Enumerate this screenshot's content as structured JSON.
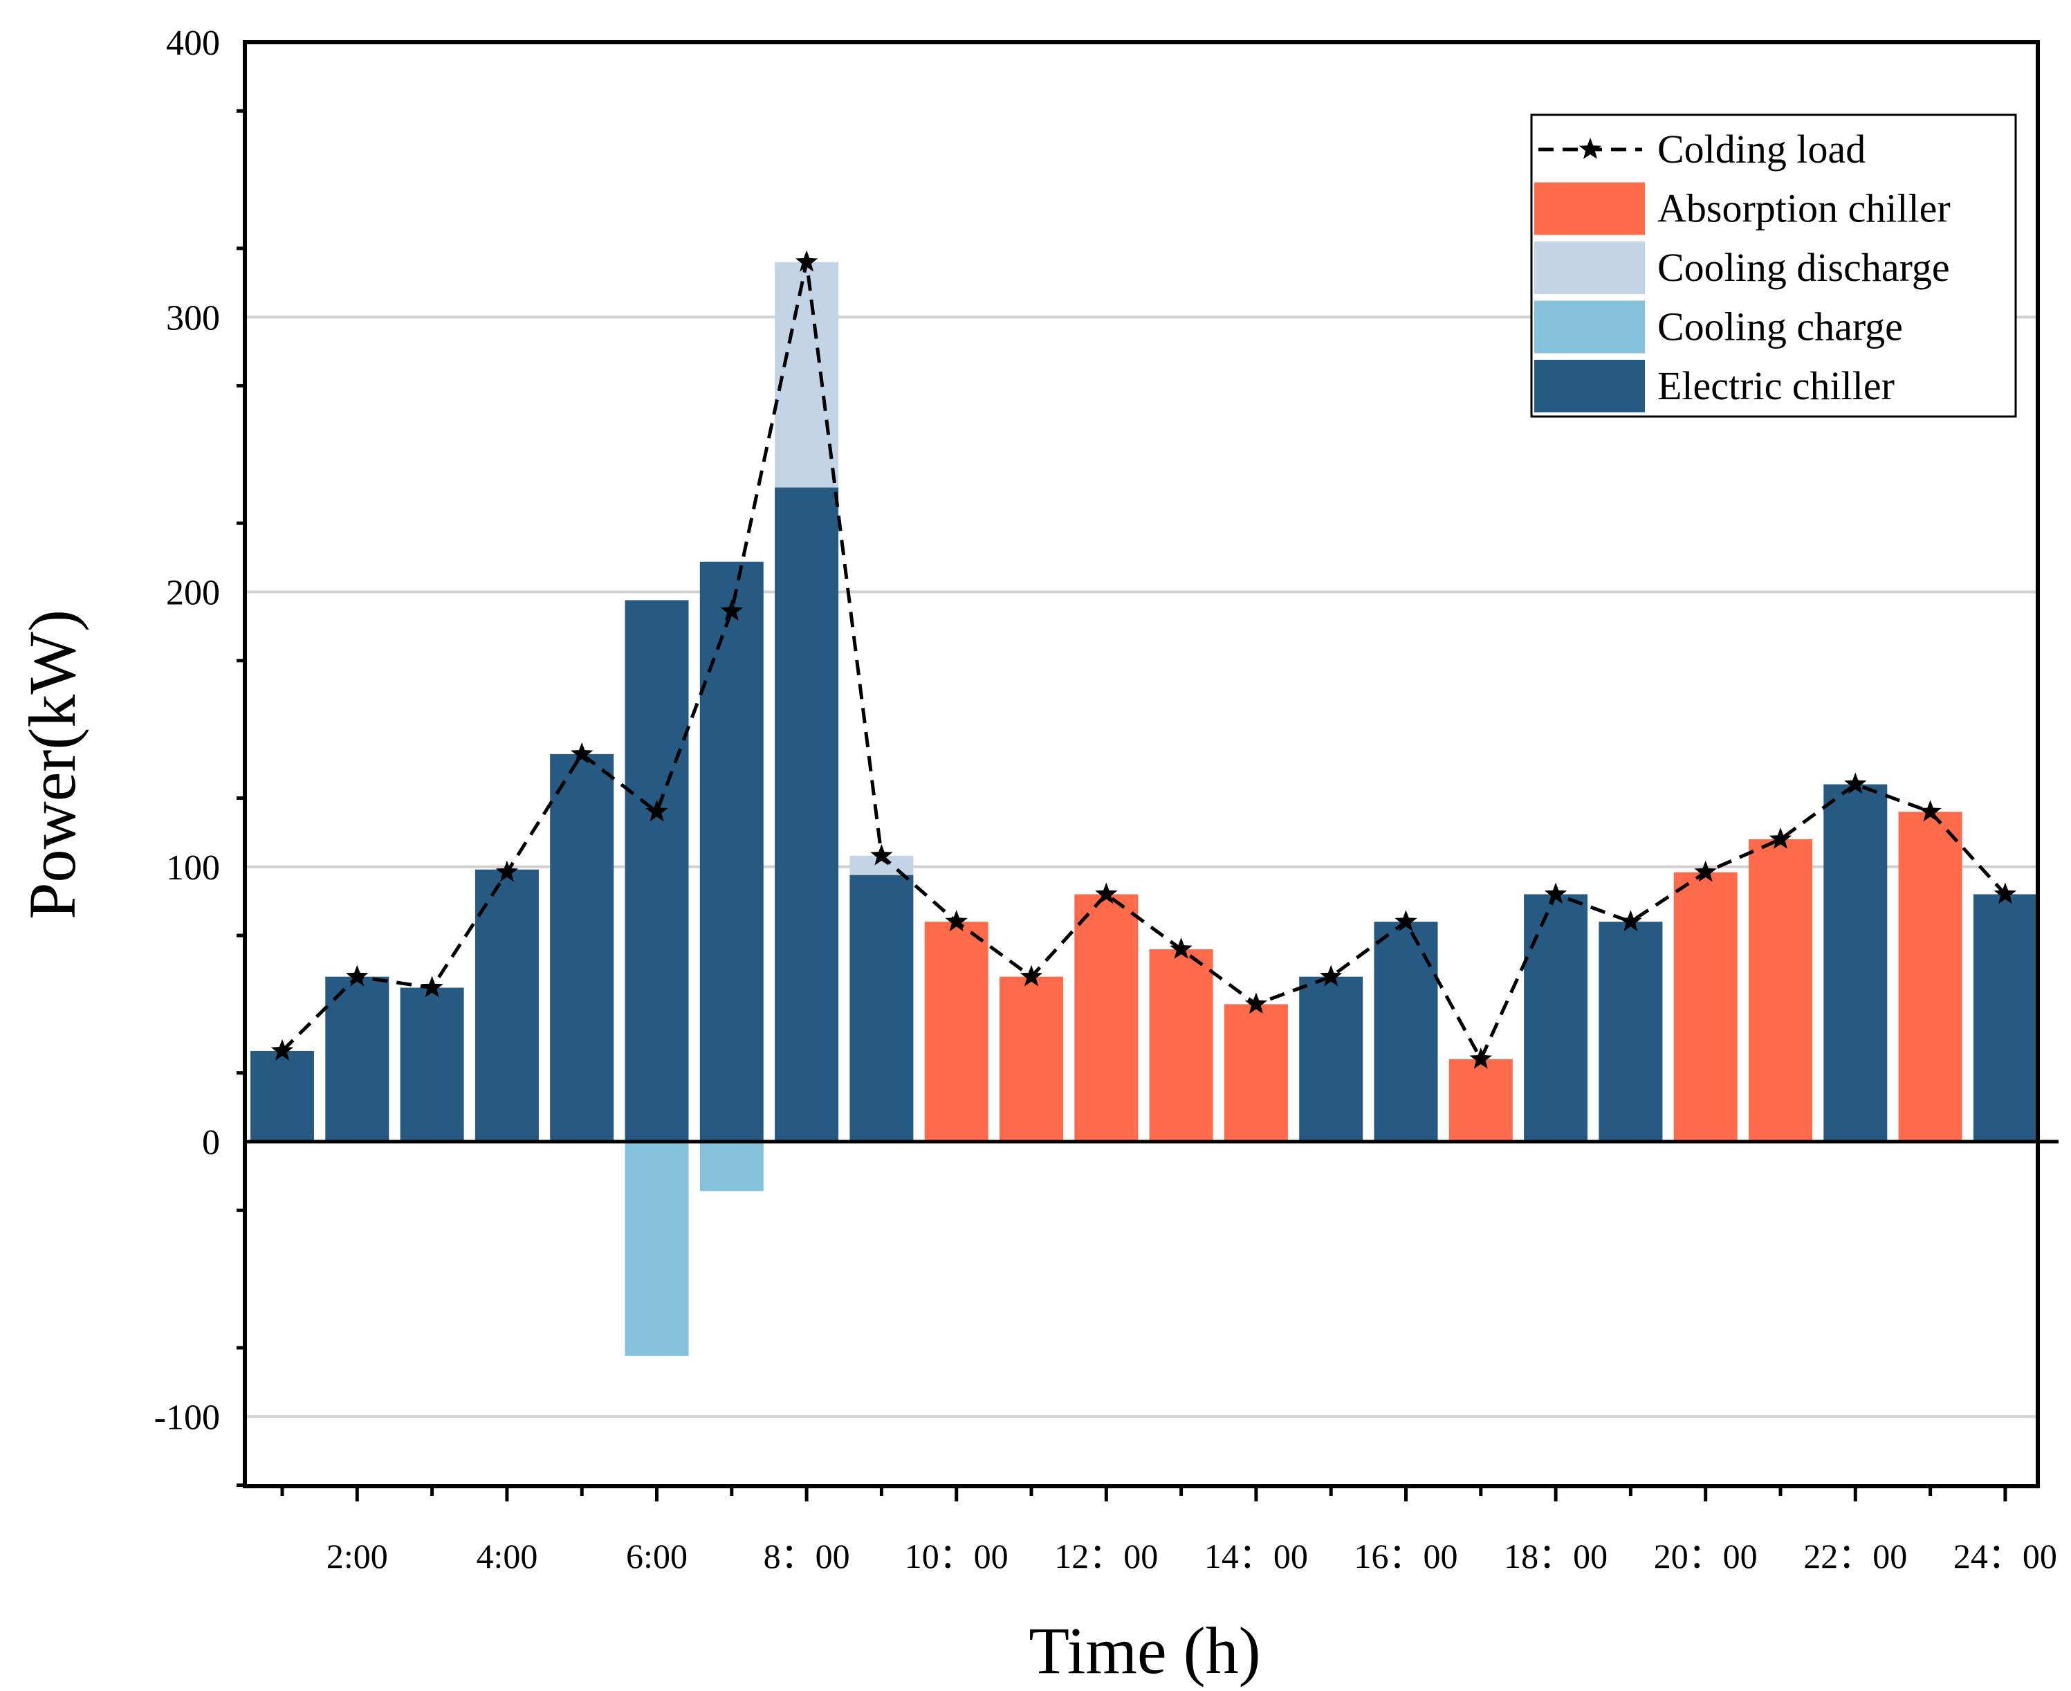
{
  "chart_data": {
    "type": "bar",
    "title": "",
    "xlabel": "Time (h)",
    "ylabel": "Power(kW)",
    "ylim": [
      -125,
      400
    ],
    "yticks": [
      -100,
      0,
      100,
      200,
      300,
      400
    ],
    "ytick_labels": [
      "-100",
      "0",
      "100",
      "200",
      "300",
      "400"
    ],
    "grid": true,
    "legend_position": "top-right",
    "categories": [
      1,
      2,
      3,
      4,
      5,
      6,
      7,
      8,
      9,
      10,
      11,
      12,
      13,
      14,
      15,
      16,
      17,
      18,
      19,
      20,
      21,
      22,
      23,
      24
    ],
    "xtick_labels": [
      {
        "hour": 2,
        "label": "2:00"
      },
      {
        "hour": 4,
        "label": "4:00"
      },
      {
        "hour": 6,
        "label": "6:00"
      },
      {
        "hour": 8,
        "label": "8：00"
      },
      {
        "hour": 10,
        "label": "10：00"
      },
      {
        "hour": 12,
        "label": "12：00"
      },
      {
        "hour": 14,
        "label": "14：00"
      },
      {
        "hour": 16,
        "label": "16：00"
      },
      {
        "hour": 18,
        "label": "18：00"
      },
      {
        "hour": 20,
        "label": "20：00"
      },
      {
        "hour": 22,
        "label": "22：00"
      },
      {
        "hour": 24,
        "label": "24：00"
      }
    ],
    "series": [
      {
        "name": "Colding load",
        "kind": "line",
        "color": "#000000",
        "values": [
          33,
          60,
          56,
          98,
          141,
          120,
          193,
          320,
          104,
          80,
          60,
          90,
          70,
          50,
          60,
          80,
          30,
          90,
          80,
          98,
          110,
          130,
          120,
          90
        ]
      },
      {
        "name": "Absorption chiller",
        "kind": "bar",
        "color": "#FF6A4A",
        "values": [
          0,
          0,
          0,
          0,
          0,
          0,
          0,
          0,
          0,
          80,
          60,
          90,
          70,
          50,
          0,
          0,
          30,
          0,
          0,
          98,
          110,
          0,
          120,
          0
        ]
      },
      {
        "name": "Cooling discharge",
        "kind": "bar",
        "color": "#C2D4E5",
        "values": [
          0,
          0,
          0,
          0,
          0,
          0,
          0,
          82,
          7,
          0,
          0,
          0,
          0,
          0,
          0,
          0,
          0,
          0,
          0,
          0,
          0,
          0,
          0,
          0
        ]
      },
      {
        "name": "Cooling charge",
        "kind": "bar",
        "color": "#85C2DB",
        "values": [
          0,
          0,
          0,
          0,
          0,
          -78,
          -18,
          0,
          0,
          0,
          0,
          0,
          0,
          0,
          0,
          0,
          0,
          0,
          0,
          0,
          0,
          0,
          0,
          0
        ]
      },
      {
        "name": "Electric chiller",
        "kind": "bar",
        "color": "#275A82",
        "values": [
          33,
          60,
          56,
          99,
          141,
          197,
          211,
          238,
          97,
          0,
          0,
          0,
          0,
          0,
          60,
          80,
          0,
          90,
          80,
          0,
          0,
          130,
          0,
          90
        ]
      }
    ]
  }
}
